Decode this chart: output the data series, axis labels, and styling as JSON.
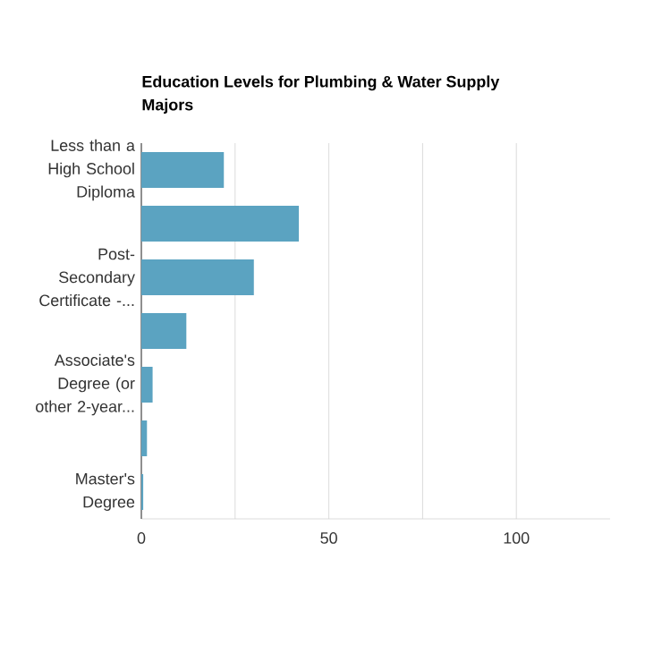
{
  "chart_data": {
    "type": "bar",
    "orientation": "horizontal",
    "title": "Education Levels for Plumbing & Water Supply Majors",
    "categories": [
      "Less than a High School Diploma",
      null,
      "Post-Secondary Certificate -...",
      null,
      "Associate's Degree (or other 2-year...",
      null,
      "Master's Degree"
    ],
    "values": [
      22,
      42,
      30,
      12,
      3,
      1.5,
      0.5
    ],
    "color": "#5ba3c1",
    "xlim": [
      0,
      125
    ],
    "xticks": [
      0,
      {
        "value": 25,
        "label": null
      },
      50,
      {
        "value": 75,
        "label": null
      },
      100
    ],
    "grid": "x"
  }
}
